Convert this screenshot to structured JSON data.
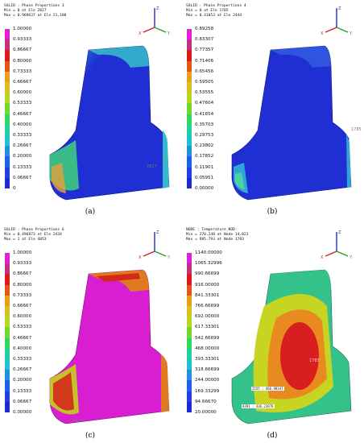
{
  "panels": [
    {
      "header": [
        "SOLID : Phase Proportions 3",
        "Min = 0 at Ele 2827",
        "Max = 0.969637 at Ele 21,108"
      ],
      "legend": [
        "1.00000",
        "0.93333",
        "0.86667",
        "0.80000",
        "0.73333",
        "0.66667",
        "0.60000",
        "0.53333",
        "0.46667",
        "0.40000",
        "0.33333",
        "0.26667",
        "0.20000",
        "0.13333",
        "0.06667",
        "0"
      ],
      "node_label": "2827",
      "caption": "(a)",
      "colors": {
        "body": "#1f2fd4",
        "edge": "#35b8c9",
        "rim": "#3fd27a",
        "hot": "#e8a03a"
      }
    },
    {
      "header": [
        "SOLID : Phase Proportions 4",
        "Min = 0 at Ele 1785",
        "Max = 0.41053 at Ele 2444"
      ],
      "legend": [
        "0.89258",
        "0.83307",
        "0.77357",
        "0.71406",
        "0.65456",
        "0.59505",
        "0.53555",
        "0.47604",
        "0.41654",
        "0.35703",
        "0.29753",
        "0.23802",
        "0.17852",
        "0.11901",
        "0.05951",
        "0.00000"
      ],
      "node_label": "1785",
      "caption": "(b)",
      "colors": {
        "body": "#1f2fd4",
        "edge": "#2f55e0",
        "rim": "#30a6d6",
        "hot": "#4fd0a0"
      }
    },
    {
      "header": [
        "SOLID : Phase Proportions 6",
        "Min = 0.496873 at Ele 2434",
        "Max = 1 at Ele 4053"
      ],
      "legend": [
        "1.00000",
        "0.93333",
        "0.86667",
        "0.80000",
        "0.73333",
        "0.66667",
        "0.60000",
        "0.53333",
        "0.46667",
        "0.40000",
        "0.33333",
        "0.26667",
        "0.20000",
        "0.13333",
        "0.06667",
        "0.00000"
      ],
      "node_label": "2434",
      "caption": "(c)",
      "colors": {
        "body": "#d81ed0",
        "edge": "#e07a20",
        "rim": "#c8c028",
        "hot": "#d22a1a"
      }
    },
    {
      "header": [
        "NODE : Temperature_NOD",
        "Min = 270.248 at Node 14,023",
        "Max = 985.793 at Node 1783"
      ],
      "legend": [
        "1140.00000",
        "1065.32996",
        "990.66699",
        "916.00000",
        "841.33301",
        "766.66699",
        "692.00000",
        "617.33301",
        "542.66699",
        "468.00000",
        "393.33301",
        "318.66699",
        "244.00000",
        "169.33299",
        "94.66670",
        "20.00000"
      ],
      "node_label": "1783",
      "tags": [
        "2555 : 466.98347",
        "9391 : 336.23976"
      ],
      "caption": "(d)",
      "colors": {
        "body": "#c8d422",
        "edge": "#35c28a",
        "rim": "#e88a20",
        "hot": "#d81e1e"
      }
    }
  ],
  "legend_colors": [
    "#e020d8",
    "#c03080",
    "#e01818",
    "#e05818",
    "#e8a018",
    "#d8c020",
    "#b8d820",
    "#70d830",
    "#30d860",
    "#20d0a0",
    "#20c0d0",
    "#2090e0",
    "#2060e8",
    "#2040e0",
    "#2028d0",
    "#1818c0"
  ],
  "axes": {
    "z": "Z",
    "y": "Y",
    "x": "X"
  }
}
